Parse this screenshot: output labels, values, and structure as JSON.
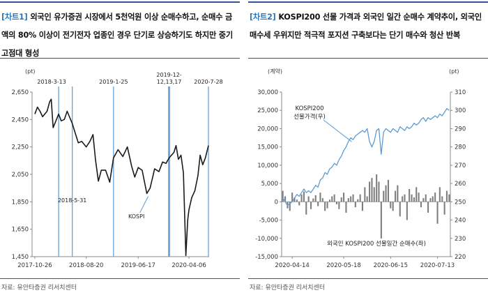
{
  "left": {
    "tag": "[차트1]",
    "title": "외국인 유가증권 시장에서 5천억원 이상 순매수하고, 순매수 금액의 80% 이상이 전기전자 업종인 경우 단기로 상승하기도 하지만 중기 고점대 형성",
    "source": "자료: 유안타증권 리서치센터"
  },
  "right": {
    "tag": "[차트2]",
    "title": "KOSPI200 선물 가격과 외국인 일간 순매수 계약추이, 외국인 매수세 우위지만 적극적 포지션 구축보다는 단기 매수와 청산 반복",
    "source": "자료: 유안타증권 리서치센터"
  },
  "chart_data": [
    {
      "type": "line",
      "ylabel": "(pt)",
      "ylim": [
        1450,
        2650
      ],
      "yticks": [
        "2,650",
        "2,450",
        "2,250",
        "2,050",
        "1,850",
        "1,650",
        "1,450"
      ],
      "xticks": [
        "2017-10-26",
        "2018-08-20",
        "2019-06-17",
        "2020-04-06"
      ],
      "grid": false,
      "series": [
        {
          "name": "KOSPI",
          "color": "#1a1a1a",
          "points": [
            [
              "2017-10-26",
              2490
            ],
            [
              "2017-11-10",
              2540
            ],
            [
              "2017-11-25",
              2510
            ],
            [
              "2017-12-10",
              2470
            ],
            [
              "2018-01-05",
              2510
            ],
            [
              "2018-01-20",
              2580
            ],
            [
              "2018-01-29",
              2598
            ],
            [
              "2018-02-09",
              2390
            ],
            [
              "2018-02-25",
              2440
            ],
            [
              "2018-03-13",
              2490
            ],
            [
              "2018-03-28",
              2440
            ],
            [
              "2018-04-15",
              2450
            ],
            [
              "2018-05-01",
              2510
            ],
            [
              "2018-05-31",
              2420
            ],
            [
              "2018-06-20",
              2340
            ],
            [
              "2018-07-05",
              2280
            ],
            [
              "2018-07-25",
              2290
            ],
            [
              "2018-08-20",
              2250
            ],
            [
              "2018-09-10",
              2290
            ],
            [
              "2018-09-28",
              2340
            ],
            [
              "2018-10-12",
              2160
            ],
            [
              "2018-10-29",
              2000
            ],
            [
              "2018-11-15",
              2080
            ],
            [
              "2018-12-10",
              2080
            ],
            [
              "2019-01-03",
              1993
            ],
            [
              "2019-01-25",
              2170
            ],
            [
              "2019-02-20",
              2230
            ],
            [
              "2019-03-20",
              2180
            ],
            [
              "2019-04-15",
              2250
            ],
            [
              "2019-05-10",
              2110
            ],
            [
              "2019-05-28",
              2030
            ],
            [
              "2019-06-17",
              2100
            ],
            [
              "2019-07-10",
              2080
            ],
            [
              "2019-08-06",
              1910
            ],
            [
              "2019-08-25",
              1950
            ],
            [
              "2019-09-20",
              2090
            ],
            [
              "2019-10-15",
              2070
            ],
            [
              "2019-11-05",
              2140
            ],
            [
              "2019-11-25",
              2130
            ],
            [
              "2019-12-13",
              2170
            ],
            [
              "2020-01-10",
              2210
            ],
            [
              "2020-01-22",
              2260
            ],
            [
              "2020-02-05",
              2160
            ],
            [
              "2020-02-20",
              2190
            ],
            [
              "2020-03-05",
              2060
            ],
            [
              "2020-03-19",
              1458
            ],
            [
              "2020-03-30",
              1720
            ],
            [
              "2020-04-06",
              1790
            ],
            [
              "2020-04-22",
              1880
            ],
            [
              "2020-05-10",
              1930
            ],
            [
              "2020-05-28",
              2040
            ],
            [
              "2020-06-10",
              2190
            ],
            [
              "2020-06-25",
              2120
            ],
            [
              "2020-07-10",
              2170
            ],
            [
              "2020-07-28",
              2260
            ]
          ]
        }
      ],
      "markers": [
        {
          "date": "2018-03-13",
          "label": "2018-3-13"
        },
        {
          "date": "2018-05-31",
          "label": "2018-5-31"
        },
        {
          "date": "2019-01-25",
          "label": "2019-1-25"
        },
        {
          "date": "2019-12-13",
          "label": "2019-12-12,13,17",
          "label_lines": [
            "2019-12-",
            "12,13,17"
          ],
          "thick": true
        },
        {
          "date": "2020-07-28",
          "label": "2020-7-28"
        }
      ],
      "annotation": {
        "label": "KOSPI",
        "date": "2019-08-06",
        "value": 1910
      }
    },
    {
      "type": "bar+line",
      "ylabel_left": "(계약)",
      "ylabel_right": "(pt)",
      "ylim_left": [
        -15000,
        30000
      ],
      "ylim_right": [
        220,
        310
      ],
      "yticks_left": [
        "30,000",
        "25,000",
        "20,000",
        "15,000",
        "10,000",
        "5,000",
        "0",
        "-5,000",
        "-10,000",
        "-15,000"
      ],
      "yticks_right": [
        "310",
        "300",
        "290",
        "280",
        "270",
        "260",
        "250",
        "240",
        "230",
        "220"
      ],
      "xticks": [
        "2020-04-14",
        "2020-05-18",
        "2020-06-15",
        "2020-07-13"
      ],
      "grid": false,
      "bars": {
        "name": "외국인 KOSPI200 선물일간 순매수(좌)",
        "color": "#7f7f7f",
        "values": [
          3000,
          1500,
          -1800,
          -2500,
          2500,
          1200,
          600,
          -1000,
          2000,
          2800,
          -3500,
          1500,
          -2000,
          900,
          1800,
          -1200,
          2500,
          1000,
          -2500,
          -1800,
          600,
          1500,
          2000,
          -700,
          -2000,
          1200,
          2500,
          -3000,
          1000,
          1500,
          2000,
          -1500,
          700,
          2000,
          -2500,
          4000,
          1500,
          5500,
          6500,
          4000,
          7500,
          5500,
          -11500,
          3000,
          4500,
          6000,
          -1800,
          -2500,
          3000,
          4500,
          -4000,
          1500,
          2000,
          -5000,
          3500,
          2000,
          1200,
          4000,
          2500,
          -1500,
          1000,
          2000,
          -3000,
          1000,
          1500,
          2500,
          -6000,
          4000,
          1500,
          -3500,
          3000,
          2000
        ]
      },
      "line": {
        "name": "KOSPI200 선물가격(우)",
        "color": "#5b9bd5",
        "values": [
          252,
          250,
          248,
          249,
          250,
          252,
          254,
          253,
          255,
          257,
          255,
          256,
          255,
          257,
          259,
          258,
          262,
          263,
          266,
          265,
          268,
          269,
          271,
          270,
          273,
          275,
          278,
          280,
          283,
          285,
          284,
          286,
          287,
          288,
          289,
          288,
          290,
          283,
          280,
          283,
          289,
          290,
          276,
          288,
          290,
          289,
          288,
          290,
          289,
          288,
          291,
          290,
          289,
          291,
          290,
          291,
          293,
          292,
          293,
          295,
          296,
          294,
          296,
          295,
          296,
          297,
          296,
          298,
          297,
          299,
          301,
          300
        ]
      },
      "annotations": [
        {
          "label": "KOSPI200 선물가격(우)",
          "label_lines": [
            "KOSPI200",
            "선물가격(우)"
          ],
          "index": 30
        },
        {
          "label": "외국인 KOSPI200 선물일간 순매수(좌)",
          "index": 42
        }
      ]
    }
  ]
}
